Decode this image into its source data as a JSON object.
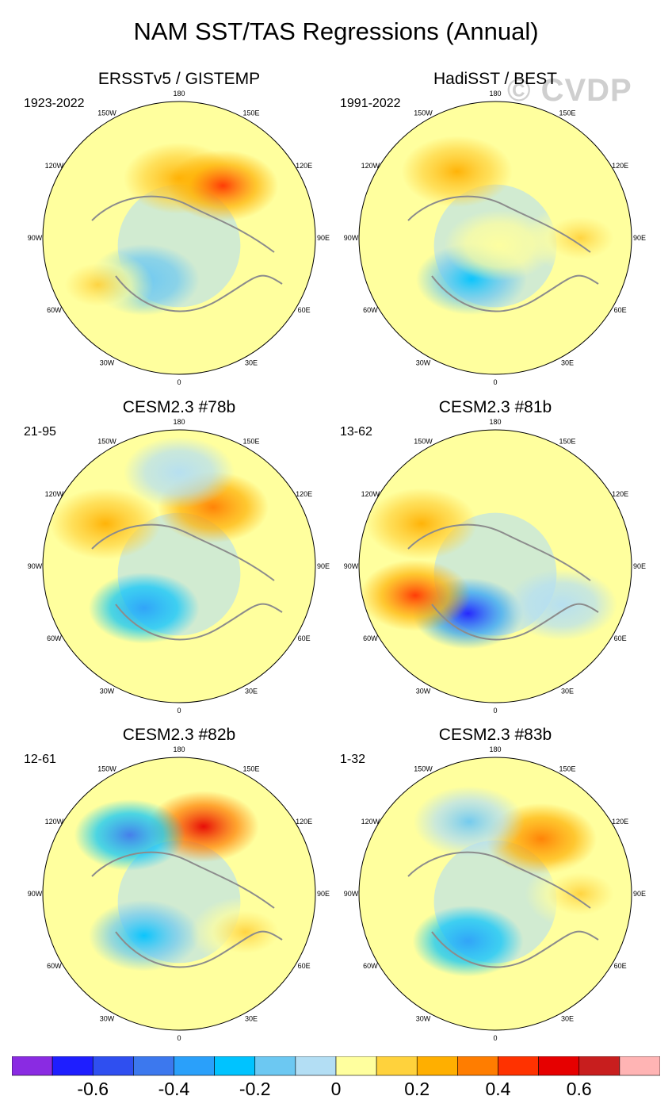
{
  "chart_data": {
    "type": "polar-map-panels",
    "title": "NAM SST/TAS Regressions (Annual)",
    "watermark": "© CVDP",
    "projection": "north polar stereographic",
    "longitude_labels": [
      "180",
      "150E",
      "120E",
      "90E",
      "60E",
      "30E",
      "0",
      "30W",
      "60W",
      "90W",
      "120W",
      "150W"
    ],
    "panels": [
      {
        "title": "ERSSTv5 / GISTEMP",
        "period": "1923-2022",
        "anomalies": [
          {
            "lon": 180,
            "lat": 55,
            "level": 0.25
          },
          {
            "lon": -40,
            "lat": 58,
            "level": -0.2
          },
          {
            "lon": -60,
            "lat": 35,
            "level": 0.15
          },
          {
            "lon": 140,
            "lat": 50,
            "level": 0.45
          }
        ]
      },
      {
        "title": "HadiSST / BEST",
        "period": "1991-2022",
        "anomalies": [
          {
            "lon": -150,
            "lat": 45,
            "level": 0.25
          },
          {
            "lon": -30,
            "lat": 62,
            "level": -0.25
          },
          {
            "lon": 90,
            "lat": 40,
            "level": 0.1
          },
          {
            "lon": 30,
            "lat": 85,
            "level": 0.0
          }
        ]
      },
      {
        "title": "CESM2.3 #78b",
        "period": "21-95",
        "anomalies": [
          {
            "lon": 150,
            "lat": 50,
            "level": 0.35
          },
          {
            "lon": -40,
            "lat": 58,
            "level": -0.35
          },
          {
            "lon": -120,
            "lat": 40,
            "level": 0.25
          },
          {
            "lon": 180,
            "lat": 35,
            "level": -0.1
          }
        ]
      },
      {
        "title": "CESM2.3 #81b",
        "period": "13-62",
        "anomalies": [
          {
            "lon": -30,
            "lat": 58,
            "level": -0.65
          },
          {
            "lon": -70,
            "lat": 40,
            "level": 0.45
          },
          {
            "lon": 60,
            "lat": 45,
            "level": -0.1
          },
          {
            "lon": -120,
            "lat": 40,
            "level": 0.25
          }
        ]
      },
      {
        "title": "CESM2.3 #82b",
        "period": "12-61",
        "anomalies": [
          {
            "lon": 160,
            "lat": 48,
            "level": 0.5
          },
          {
            "lon": -140,
            "lat": 45,
            "level": -0.45
          },
          {
            "lon": -40,
            "lat": 58,
            "level": -0.3
          },
          {
            "lon": 60,
            "lat": 45,
            "level": 0.1
          }
        ]
      },
      {
        "title": "CESM2.3 #83b",
        "period": "1-32",
        "anomalies": [
          {
            "lon": 140,
            "lat": 48,
            "level": 0.35
          },
          {
            "lon": -30,
            "lat": 58,
            "level": -0.4
          },
          {
            "lon": -160,
            "lat": 45,
            "level": -0.15
          },
          {
            "lon": 90,
            "lat": 40,
            "level": 0.1
          }
        ]
      }
    ],
    "colorbar": {
      "boundaries": [
        -0.8,
        -0.7,
        -0.6,
        -0.5,
        -0.4,
        -0.3,
        -0.2,
        -0.1,
        0,
        0.1,
        0.2,
        0.3,
        0.4,
        0.5,
        0.6,
        0.7,
        0.8
      ],
      "colors": [
        "#8a2be2",
        "#1e1eff",
        "#2f4ff0",
        "#3c78ee",
        "#2aa0fa",
        "#00c3ff",
        "#6cc8f2",
        "#b3def4",
        "#ffff9e",
        "#ffd23c",
        "#ffaf00",
        "#ff7d00",
        "#ff3200",
        "#e60000",
        "#c81e1e",
        "#ffb4b4"
      ],
      "tick_labels": [
        "-0.6",
        "-0.4",
        "-0.2",
        "0",
        "0.2",
        "0.4",
        "0.6"
      ],
      "tick_values": [
        -0.6,
        -0.4,
        -0.2,
        0,
        0.2,
        0.4,
        0.6
      ]
    }
  }
}
